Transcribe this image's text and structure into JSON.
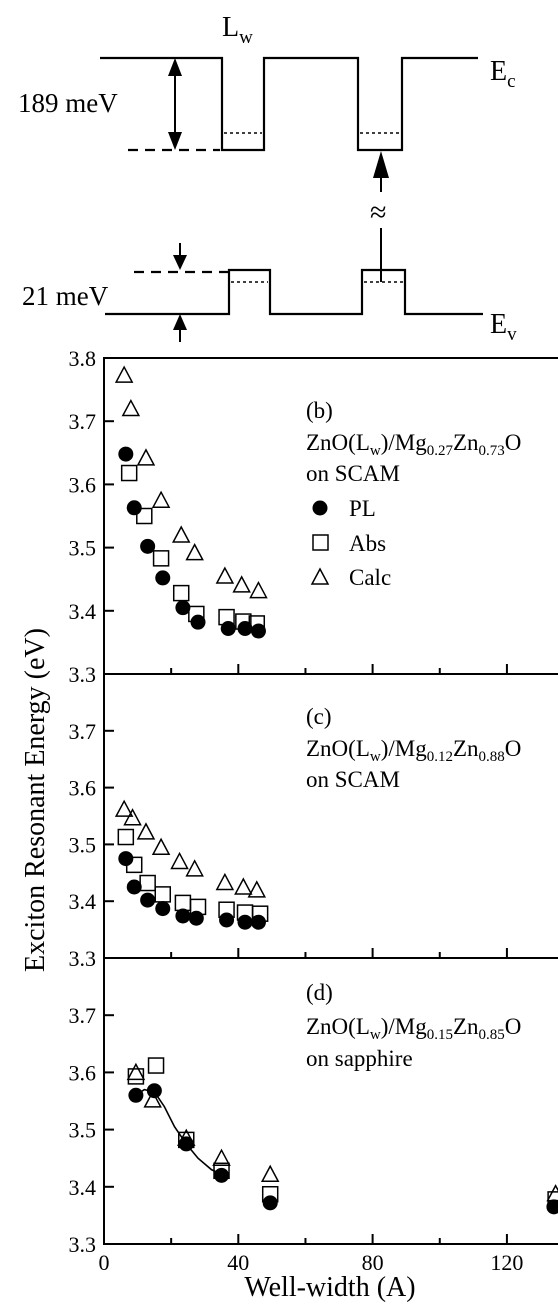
{
  "band_diagram": {
    "well_label_main": "L",
    "well_label_sub": "w",
    "ec_main": "E",
    "ec_sub": "c",
    "ev_main": "E",
    "ev_sub": "v",
    "cb_offset": "189 meV",
    "vb_offset": "21 meV",
    "break_symbol": "≈"
  },
  "shared_axes": {
    "ylabel": "Exciton Resonant Energy (eV)",
    "xlabel": "Well-width (A)",
    "xticks": [
      "0",
      "40",
      "80",
      "120"
    ],
    "yticks_b": [
      "3.3",
      "3.4",
      "3.5",
      "3.6",
      "3.7",
      "3.8"
    ],
    "yticks_cd": [
      "3.3",
      "3.4",
      "3.5",
      "3.6",
      "3.7"
    ]
  },
  "legend": {
    "pl": "PL",
    "abs": "Abs",
    "calc": "Calc"
  },
  "panels": [
    {
      "tag": "(b)",
      "title_pre": "ZnO(L",
      "title_w": "w",
      "title_mid": ")/Mg",
      "title_s1": "0.27",
      "title_zn": "Zn",
      "title_s2": "0.73",
      "title_o": "O",
      "substrate": "on SCAM"
    },
    {
      "tag": "(c)",
      "title_pre": "ZnO(L",
      "title_w": "w",
      "title_mid": ")/Mg",
      "title_s1": "0.12",
      "title_zn": "Zn",
      "title_s2": "0.88",
      "title_o": "O",
      "substrate": "on SCAM"
    },
    {
      "tag": "(d)",
      "title_pre": "ZnO(L",
      "title_w": "w",
      "title_mid": ")/Mg",
      "title_s1": "0.15",
      "title_zn": "Zn",
      "title_s2": "0.85",
      "title_o": "O",
      "substrate": "on sapphire"
    }
  ],
  "chart_data": [
    {
      "type": "scatter",
      "xlim": [
        0,
        137
      ],
      "ylim": [
        3.3,
        3.8
      ],
      "xlabel": "Well-width (A)",
      "ylabel": "Exciton Resonant Energy (eV)",
      "legend_position": "top-right",
      "series": [
        {
          "name": "PL",
          "marker": "filled-circle",
          "x": [
            6.5,
            9,
            13,
            17.5,
            23.5,
            28,
            37,
            42,
            46
          ],
          "y": [
            3.648,
            3.563,
            3.502,
            3.452,
            3.405,
            3.382,
            3.372,
            3.372,
            3.368
          ]
        },
        {
          "name": "Abs",
          "marker": "open-square",
          "x": [
            7.5,
            12,
            17,
            23,
            27.5,
            36.5,
            41.5,
            45.5
          ],
          "y": [
            3.618,
            3.55,
            3.483,
            3.428,
            3.395,
            3.39,
            3.383,
            3.38
          ]
        },
        {
          "name": "Calc",
          "marker": "open-triangle",
          "x": [
            6,
            8,
            12.5,
            17,
            23,
            27,
            36,
            41,
            46
          ],
          "y": [
            3.773,
            3.72,
            3.642,
            3.575,
            3.52,
            3.492,
            3.455,
            3.441,
            3.432
          ]
        }
      ]
    },
    {
      "type": "scatter",
      "xlim": [
        0,
        137
      ],
      "ylim": [
        3.3,
        3.8
      ],
      "xlabel": "Well-width (A)",
      "ylabel": "Exciton Resonant Energy (eV)",
      "series": [
        {
          "name": "PL",
          "marker": "filled-circle",
          "x": [
            6.5,
            9,
            13,
            17.5,
            23.5,
            27.5,
            36.5,
            42,
            46
          ],
          "y": [
            3.475,
            3.425,
            3.402,
            3.387,
            3.374,
            3.37,
            3.367,
            3.363,
            3.363
          ]
        },
        {
          "name": "Abs",
          "marker": "open-square",
          "x": [
            6.5,
            9,
            13,
            17.5,
            23.5,
            28,
            36.5,
            42,
            46.5
          ],
          "y": [
            3.513,
            3.464,
            3.432,
            3.412,
            3.397,
            3.39,
            3.385,
            3.38,
            3.378
          ]
        },
        {
          "name": "Calc",
          "marker": "open-triangle",
          "x": [
            6,
            8.5,
            12.5,
            17,
            22.5,
            27,
            36,
            41.5,
            45.5
          ],
          "y": [
            3.562,
            3.547,
            3.522,
            3.495,
            3.47,
            3.457,
            3.433,
            3.425,
            3.42
          ]
        }
      ]
    },
    {
      "type": "scatter",
      "xlim": [
        0,
        137
      ],
      "ylim": [
        3.3,
        3.8
      ],
      "xlabel": "Well-width (A)",
      "ylabel": "Exciton Resonant Energy (eV)",
      "series": [
        {
          "name": "PL",
          "marker": "filled-circle",
          "x": [
            9.5,
            15,
            24.5,
            35,
            49.5,
            134
          ],
          "y": [
            3.56,
            3.568,
            3.475,
            3.42,
            3.372,
            3.365
          ]
        },
        {
          "name": "Abs",
          "marker": "open-square",
          "x": [
            9.5,
            15.5,
            24.5,
            35,
            49.5,
            134.5
          ],
          "y": [
            3.593,
            3.612,
            3.482,
            3.428,
            3.387,
            3.378
          ]
        },
        {
          "name": "Calc",
          "marker": "open-triangle",
          "x": [
            9.5,
            14.5,
            24.5,
            35,
            49.5,
            134.5
          ],
          "y": [
            3.6,
            3.552,
            3.485,
            3.45,
            3.422,
            3.388
          ]
        },
        {
          "name": "",
          "marker": "line",
          "x": [
            10,
            12,
            15,
            18,
            21,
            24.5,
            28,
            32,
            35
          ],
          "y": [
            3.562,
            3.57,
            3.566,
            3.54,
            3.505,
            3.475,
            3.45,
            3.43,
            3.422
          ]
        }
      ]
    }
  ]
}
